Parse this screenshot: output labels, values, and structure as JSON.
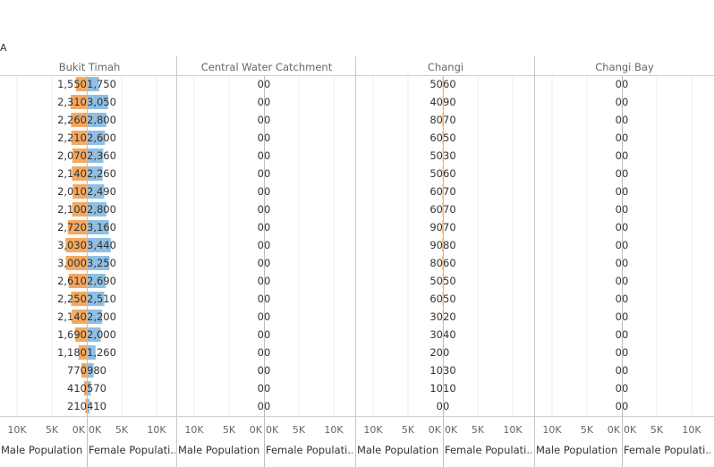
{
  "corner_text": "A",
  "chart_data": {
    "type": "bar",
    "title": "",
    "row_count": 19,
    "panels": [
      {
        "name": "Bukit Timah",
        "male": [
          1550,
          2310,
          2260,
          2210,
          2070,
          2140,
          2010,
          2100,
          2720,
          3030,
          3000,
          2610,
          2250,
          2140,
          1690,
          1180,
          770,
          410,
          210
        ],
        "female": [
          1750,
          3050,
          2800,
          2600,
          2360,
          2260,
          2490,
          2800,
          3160,
          3440,
          3250,
          2690,
          2510,
          2200,
          2000,
          1260,
          980,
          570,
          410
        ],
        "male_labels": [
          "1,550",
          "2,310",
          "2,260",
          "2,210",
          "2,070",
          "2,140",
          "2,010",
          "2,100",
          "2,720",
          "3,030",
          "3,000",
          "2,610",
          "2,250",
          "2,140",
          "1,690",
          "1,180",
          "770",
          "410",
          "210"
        ],
        "female_labels": [
          "1,750",
          "3,050",
          "2,800",
          "2,600",
          "2,360",
          "2,260",
          "2,490",
          "2,800",
          "3,160",
          "3,440",
          "3,250",
          "2,690",
          "2,510",
          "2,200",
          "2,000",
          "1,260",
          "980",
          "570",
          "410"
        ]
      },
      {
        "name": "Central Water Catchment",
        "male": [
          0,
          0,
          0,
          0,
          0,
          0,
          0,
          0,
          0,
          0,
          0,
          0,
          0,
          0,
          0,
          0,
          0,
          0,
          0
        ],
        "female": [
          0,
          0,
          0,
          0,
          0,
          0,
          0,
          0,
          0,
          0,
          0,
          0,
          0,
          0,
          0,
          0,
          0,
          0,
          0
        ],
        "male_labels": [
          "0",
          "0",
          "0",
          "0",
          "0",
          "0",
          "0",
          "0",
          "0",
          "0",
          "0",
          "0",
          "0",
          "0",
          "0",
          "0",
          "0",
          "0",
          "0"
        ],
        "female_labels": [
          "0",
          "0",
          "0",
          "0",
          "0",
          "0",
          "0",
          "0",
          "0",
          "0",
          "0",
          "0",
          "0",
          "0",
          "0",
          "0",
          "0",
          "0",
          "0"
        ]
      },
      {
        "name": "Changi",
        "male": [
          50,
          40,
          80,
          60,
          50,
          50,
          60,
          60,
          90,
          90,
          80,
          50,
          60,
          30,
          30,
          20,
          10,
          10,
          0
        ],
        "female": [
          60,
          90,
          70,
          50,
          30,
          60,
          70,
          70,
          70,
          80,
          60,
          50,
          50,
          20,
          40,
          0,
          30,
          10,
          0
        ],
        "male_labels": [
          "50",
          "40",
          "80",
          "60",
          "50",
          "50",
          "60",
          "60",
          "90",
          "90",
          "80",
          "50",
          "60",
          "30",
          "30",
          "20",
          "10",
          "10",
          "0"
        ],
        "female_labels": [
          "60",
          "90",
          "70",
          "50",
          "30",
          "60",
          "70",
          "70",
          "70",
          "80",
          "60",
          "50",
          "50",
          "20",
          "40",
          "0",
          "30",
          "10",
          "0"
        ]
      },
      {
        "name": "Changi Bay",
        "male": [
          0,
          0,
          0,
          0,
          0,
          0,
          0,
          0,
          0,
          0,
          0,
          0,
          0,
          0,
          0,
          0,
          0,
          0,
          0
        ],
        "female": [
          0,
          0,
          0,
          0,
          0,
          0,
          0,
          0,
          0,
          0,
          0,
          0,
          0,
          0,
          0,
          0,
          0,
          0,
          0
        ],
        "male_labels": [
          "0",
          "0",
          "0",
          "0",
          "0",
          "0",
          "0",
          "0",
          "0",
          "0",
          "0",
          "0",
          "0",
          "0",
          "0",
          "0",
          "0",
          "0",
          "0"
        ],
        "female_labels": [
          "0",
          "0",
          "0",
          "0",
          "0",
          "0",
          "0",
          "0",
          "0",
          "0",
          "0",
          "0",
          "0",
          "0",
          "0",
          "0",
          "0",
          "0",
          "0"
        ]
      }
    ],
    "male_axis": {
      "label": "Male Population",
      "ticks": [
        "10K",
        "5K",
        "0K"
      ],
      "range": [
        12000,
        0
      ]
    },
    "female_axis": {
      "label": "Female Populati..",
      "ticks": [
        "0K",
        "5K",
        "10K"
      ],
      "range": [
        0,
        12000
      ]
    },
    "colors": {
      "male": "#f5a85e",
      "female": "#8fbfe3"
    },
    "grid": true
  }
}
